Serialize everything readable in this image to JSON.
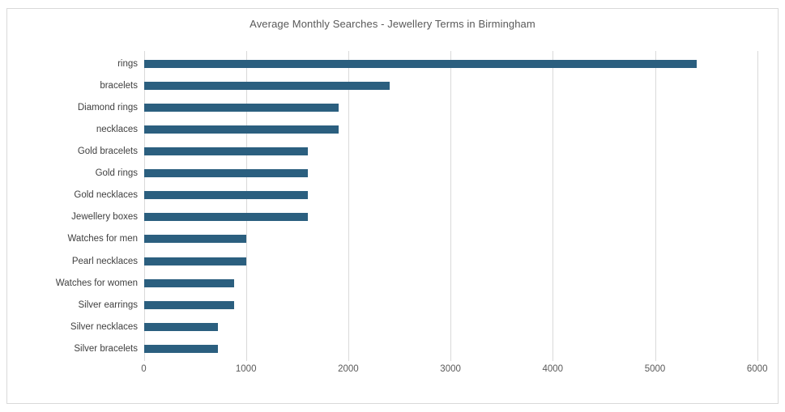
{
  "title": "Average Monthly Searches - Jewellery Terms in Birmingham",
  "colors": {
    "bar": "#2B5F7F",
    "gridline": "#d9d9d9",
    "border": "#d9d9d9",
    "title_text": "#595959",
    "category_text": "#404040",
    "tick_text": "#595959",
    "background": "#ffffff"
  },
  "chart_data": {
    "type": "bar",
    "orientation": "horizontal",
    "title": "Average Monthly Searches - Jewellery Terms in Birmingham",
    "categories": [
      "rings",
      "bracelets",
      "Diamond rings",
      "necklaces",
      "Gold bracelets",
      "Gold rings",
      "Gold necklaces",
      "Jewellery boxes",
      "Watches for men",
      "Pearl necklaces",
      "Watches for women",
      "Silver earrings",
      "Silver necklaces",
      "Silver bracelets"
    ],
    "values": [
      5400,
      2400,
      1900,
      1900,
      1600,
      1600,
      1600,
      1600,
      1000,
      1000,
      880,
      880,
      720,
      720
    ],
    "xlabel": "",
    "ylabel": "",
    "xlim": [
      0,
      6000
    ],
    "xticks": [
      0,
      1000,
      2000,
      3000,
      4000,
      5000,
      6000
    ],
    "grid": "vertical-only",
    "legend": "none"
  }
}
